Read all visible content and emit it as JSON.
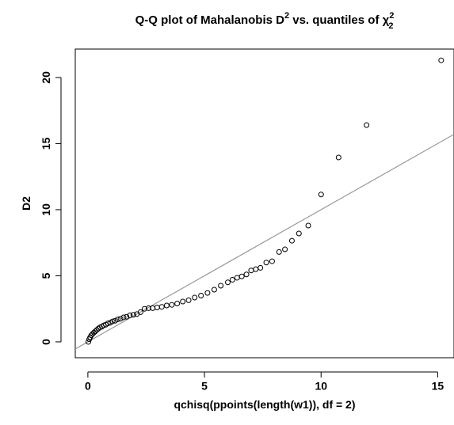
{
  "chart_data": {
    "type": "scatter",
    "title": {
      "text": "Q-Q plot of Mahalanobis D",
      "sup": "2",
      "mid": " vs. quantiles of ",
      "chi": "χ",
      "chi_sup": "2",
      "chi_sub": "2"
    },
    "x_label": "qchisq(ppoints(length(w1)), df = 2)",
    "y_label": "D2",
    "x": [
      0.02,
      0.06,
      0.1,
      0.15,
      0.2,
      0.26,
      0.32,
      0.38,
      0.45,
      0.52,
      0.6,
      0.68,
      0.77,
      0.86,
      0.96,
      1.06,
      1.17,
      1.28,
      1.4,
      1.53,
      1.66,
      1.8,
      1.95,
      2.1,
      2.26,
      2.43,
      2.6,
      2.78,
      2.97,
      3.17,
      3.38,
      3.6,
      3.83,
      4.07,
      4.32,
      4.58,
      4.85,
      5.13,
      5.42,
      5.7,
      6.0,
      6.2,
      6.4,
      6.6,
      6.8,
      7.0,
      7.2,
      7.4,
      7.65,
      7.9,
      8.2,
      8.45,
      8.75,
      9.05,
      9.45,
      10.0,
      10.75,
      11.95,
      15.15
    ],
    "values": [
      0.0,
      0.2,
      0.35,
      0.5,
      0.6,
      0.7,
      0.8,
      0.9,
      1.0,
      1.1,
      1.15,
      1.25,
      1.3,
      1.4,
      1.45,
      1.55,
      1.6,
      1.7,
      1.75,
      1.85,
      1.9,
      2.0,
      2.05,
      2.1,
      2.25,
      2.5,
      2.55,
      2.55,
      2.6,
      2.65,
      2.75,
      2.8,
      2.9,
      3.05,
      3.15,
      3.35,
      3.5,
      3.7,
      3.95,
      4.25,
      4.5,
      4.7,
      4.85,
      4.95,
      5.1,
      5.4,
      5.5,
      5.6,
      6.0,
      6.1,
      6.8,
      7.0,
      7.65,
      8.2,
      8.8,
      11.15,
      13.95,
      16.4,
      21.3
    ],
    "color": "#000000",
    "reference_line": {
      "slope": 1,
      "intercept": 0,
      "color": "#999999"
    },
    "xlim": [
      -0.54,
      15.7
    ],
    "ylim": [
      -1.2,
      22.15
    ],
    "xticks": [
      0,
      5,
      10,
      15
    ],
    "yticks": [
      0,
      5,
      10,
      15,
      20
    ]
  }
}
